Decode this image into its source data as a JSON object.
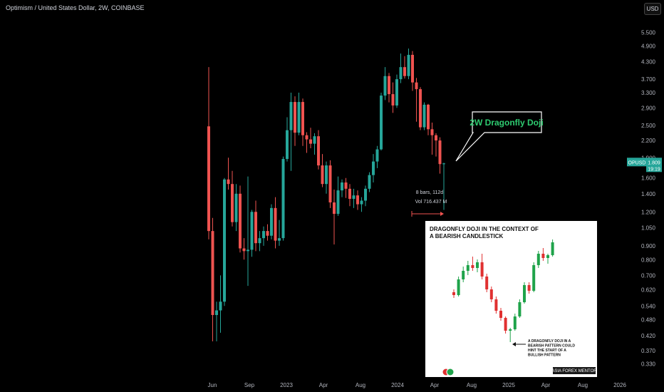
{
  "header": {
    "title": "Optimism / United States Dollar, 2W, COINBASE",
    "currency_button": "USD"
  },
  "colors": {
    "up": "#26a69a",
    "down": "#ef5350",
    "background": "#000000",
    "annotation_green": "#2ecc71",
    "label_bg": "#26a69a"
  },
  "chart_data": {
    "type": "candlestick",
    "y_scale": "log",
    "ylim": [
      0.31,
      5.9
    ],
    "y_ticks": [
      "5.500",
      "4.900",
      "4.300",
      "3.700",
      "3.300",
      "2.900",
      "2.500",
      "2.200",
      "1.900",
      "1.600",
      "1.400",
      "1.200",
      "1.050",
      "0.900",
      "0.800",
      "0.700",
      "0.620",
      "0.540",
      "0.480",
      "0.420",
      "0.370",
      "0.330"
    ],
    "x_ticks": [
      "Jun",
      "Sep",
      "2023",
      "Apr",
      "Aug",
      "2024",
      "Apr",
      "Aug",
      "2025",
      "Apr",
      "Aug",
      "2026"
    ],
    "price_label": {
      "symbol": "OPUSD",
      "price": "1.809",
      "countdown": "19:19"
    },
    "candles": [
      {
        "o": 2.48,
        "h": 4.1,
        "l": 0.95,
        "c": 1.02
      },
      {
        "o": 1.02,
        "h": 1.14,
        "l": 0.4,
        "c": 0.5
      },
      {
        "o": 0.5,
        "h": 0.56,
        "l": 0.4,
        "c": 0.52
      },
      {
        "o": 0.52,
        "h": 0.7,
        "l": 0.43,
        "c": 0.56
      },
      {
        "o": 0.56,
        "h": 1.6,
        "l": 0.54,
        "c": 1.58
      },
      {
        "o": 1.58,
        "h": 1.9,
        "l": 1.45,
        "c": 1.52
      },
      {
        "o": 1.52,
        "h": 1.7,
        "l": 1.06,
        "c": 1.1
      },
      {
        "o": 1.1,
        "h": 1.52,
        "l": 1.02,
        "c": 1.4
      },
      {
        "o": 1.4,
        "h": 1.5,
        "l": 0.85,
        "c": 0.88
      },
      {
        "o": 0.88,
        "h": 0.96,
        "l": 0.8,
        "c": 0.86
      },
      {
        "o": 0.86,
        "h": 1.62,
        "l": 0.64,
        "c": 0.87
      },
      {
        "o": 0.87,
        "h": 1.22,
        "l": 0.82,
        "c": 1.2
      },
      {
        "o": 1.2,
        "h": 1.32,
        "l": 0.86,
        "c": 0.92
      },
      {
        "o": 0.92,
        "h": 1.02,
        "l": 0.86,
        "c": 0.96
      },
      {
        "o": 0.96,
        "h": 1.06,
        "l": 0.9,
        "c": 1.02
      },
      {
        "o": 1.02,
        "h": 1.08,
        "l": 0.94,
        "c": 0.98
      },
      {
        "o": 0.98,
        "h": 1.28,
        "l": 0.95,
        "c": 1.24
      },
      {
        "o": 1.24,
        "h": 1.36,
        "l": 0.88,
        "c": 0.94
      },
      {
        "o": 0.94,
        "h": 1.12,
        "l": 0.9,
        "c": 0.96
      },
      {
        "o": 0.96,
        "h": 1.92,
        "l": 0.94,
        "c": 1.88
      },
      {
        "o": 1.88,
        "h": 2.68,
        "l": 1.84,
        "c": 2.4
      },
      {
        "o": 2.4,
        "h": 3.3,
        "l": 1.7,
        "c": 3.05
      },
      {
        "o": 3.05,
        "h": 3.2,
        "l": 2.1,
        "c": 2.35
      },
      {
        "o": 2.35,
        "h": 3.3,
        "l": 2.3,
        "c": 3.05
      },
      {
        "o": 3.05,
        "h": 3.14,
        "l": 2.1,
        "c": 2.3
      },
      {
        "o": 2.3,
        "h": 2.36,
        "l": 1.98,
        "c": 2.22
      },
      {
        "o": 2.22,
        "h": 2.45,
        "l": 2.06,
        "c": 2.14
      },
      {
        "o": 2.14,
        "h": 2.34,
        "l": 1.95,
        "c": 2.28
      },
      {
        "o": 2.28,
        "h": 2.4,
        "l": 1.72,
        "c": 1.78
      },
      {
        "o": 1.78,
        "h": 1.96,
        "l": 1.48,
        "c": 1.52
      },
      {
        "o": 1.52,
        "h": 1.84,
        "l": 1.4,
        "c": 1.78
      },
      {
        "o": 1.78,
        "h": 1.86,
        "l": 1.24,
        "c": 1.3
      },
      {
        "o": 1.3,
        "h": 1.45,
        "l": 0.91,
        "c": 1.18
      },
      {
        "o": 1.18,
        "h": 1.62,
        "l": 1.16,
        "c": 1.44
      },
      {
        "o": 1.44,
        "h": 1.58,
        "l": 1.36,
        "c": 1.54
      },
      {
        "o": 1.54,
        "h": 1.6,
        "l": 1.35,
        "c": 1.46
      },
      {
        "o": 1.46,
        "h": 1.52,
        "l": 1.26,
        "c": 1.34
      },
      {
        "o": 1.34,
        "h": 1.46,
        "l": 1.24,
        "c": 1.38
      },
      {
        "o": 1.38,
        "h": 1.44,
        "l": 1.22,
        "c": 1.28
      },
      {
        "o": 1.28,
        "h": 1.36,
        "l": 1.2,
        "c": 1.32
      },
      {
        "o": 1.32,
        "h": 1.5,
        "l": 1.26,
        "c": 1.46
      },
      {
        "o": 1.46,
        "h": 1.68,
        "l": 1.42,
        "c": 1.64
      },
      {
        "o": 1.64,
        "h": 1.96,
        "l": 1.54,
        "c": 1.84
      },
      {
        "o": 1.84,
        "h": 2.1,
        "l": 1.74,
        "c": 2.04
      },
      {
        "o": 2.04,
        "h": 3.3,
        "l": 2.02,
        "c": 3.22
      },
      {
        "o": 3.22,
        "h": 4.1,
        "l": 3.1,
        "c": 3.8
      },
      {
        "o": 3.8,
        "h": 3.9,
        "l": 3.04,
        "c": 3.26
      },
      {
        "o": 3.26,
        "h": 3.6,
        "l": 2.78,
        "c": 2.96
      },
      {
        "o": 2.96,
        "h": 3.85,
        "l": 2.9,
        "c": 3.7
      },
      {
        "o": 3.7,
        "h": 4.6,
        "l": 3.58,
        "c": 4.1
      },
      {
        "o": 4.1,
        "h": 4.5,
        "l": 3.72,
        "c": 3.8
      },
      {
        "o": 3.8,
        "h": 4.8,
        "l": 3.7,
        "c": 4.55
      },
      {
        "o": 4.55,
        "h": 4.7,
        "l": 3.35,
        "c": 3.6
      },
      {
        "o": 3.6,
        "h": 3.74,
        "l": 2.58,
        "c": 3.4
      },
      {
        "o": 3.4,
        "h": 3.46,
        "l": 2.4,
        "c": 2.46
      },
      {
        "o": 2.46,
        "h": 3.04,
        "l": 2.4,
        "c": 2.98
      },
      {
        "o": 2.98,
        "h": 3.0,
        "l": 2.3,
        "c": 2.42
      },
      {
        "o": 2.42,
        "h": 2.56,
        "l": 1.95,
        "c": 2.3
      },
      {
        "o": 2.3,
        "h": 2.34,
        "l": 1.92,
        "c": 2.2
      },
      {
        "o": 2.2,
        "h": 2.26,
        "l": 1.66,
        "c": 1.8
      },
      {
        "o": 1.8,
        "h": 1.82,
        "l": 1.22,
        "c": 1.81
      }
    ],
    "annotation": {
      "label": "2W Dragonfly Doji"
    },
    "measure": {
      "bars": "8 bars, 112d",
      "volume": "Vol 716.437 M"
    },
    "inset": {
      "title_line1": "DRAGONFLY DOJI IN THE CONTEXT OF",
      "title_line2": "A BEARISH CANDLESTICK",
      "note_line1": "A DRAGONFLY DOJI IN A",
      "note_line2": "BEARISH PATTERN COULD",
      "note_line3": "HINT THE START OF A",
      "note_line4": "BULLISH PATTERN",
      "brand": "ASIA FOREX MENTOR",
      "candles": [
        {
          "o": 0.45,
          "h": 0.47,
          "l": 0.41,
          "c": 0.43
        },
        {
          "o": 0.43,
          "h": 0.56,
          "l": 0.42,
          "c": 0.54
        },
        {
          "o": 0.54,
          "h": 0.63,
          "l": 0.52,
          "c": 0.6
        },
        {
          "o": 0.6,
          "h": 0.67,
          "l": 0.57,
          "c": 0.64
        },
        {
          "o": 0.64,
          "h": 0.7,
          "l": 0.6,
          "c": 0.62
        },
        {
          "o": 0.62,
          "h": 0.68,
          "l": 0.59,
          "c": 0.66
        },
        {
          "o": 0.66,
          "h": 0.72,
          "l": 0.54,
          "c": 0.56
        },
        {
          "o": 0.56,
          "h": 0.58,
          "l": 0.45,
          "c": 0.47
        },
        {
          "o": 0.47,
          "h": 0.49,
          "l": 0.38,
          "c": 0.4
        },
        {
          "o": 0.4,
          "h": 0.42,
          "l": 0.3,
          "c": 0.32
        },
        {
          "o": 0.32,
          "h": 0.34,
          "l": 0.25,
          "c": 0.27
        },
        {
          "o": 0.27,
          "h": 0.28,
          "l": 0.16,
          "c": 0.18
        },
        {
          "o": 0.18,
          "h": 0.2,
          "l": 0.1,
          "c": 0.19
        },
        {
          "o": 0.19,
          "h": 0.3,
          "l": 0.18,
          "c": 0.28
        },
        {
          "o": 0.28,
          "h": 0.4,
          "l": 0.27,
          "c": 0.38
        },
        {
          "o": 0.38,
          "h": 0.52,
          "l": 0.37,
          "c": 0.5
        },
        {
          "o": 0.5,
          "h": 0.52,
          "l": 0.44,
          "c": 0.46
        },
        {
          "o": 0.46,
          "h": 0.66,
          "l": 0.45,
          "c": 0.64
        },
        {
          "o": 0.64,
          "h": 0.74,
          "l": 0.62,
          "c": 0.72
        },
        {
          "o": 0.72,
          "h": 0.76,
          "l": 0.67,
          "c": 0.69
        },
        {
          "o": 0.69,
          "h": 0.72,
          "l": 0.65,
          "c": 0.71
        },
        {
          "o": 0.71,
          "h": 0.82,
          "l": 0.7,
          "c": 0.8
        }
      ]
    }
  }
}
